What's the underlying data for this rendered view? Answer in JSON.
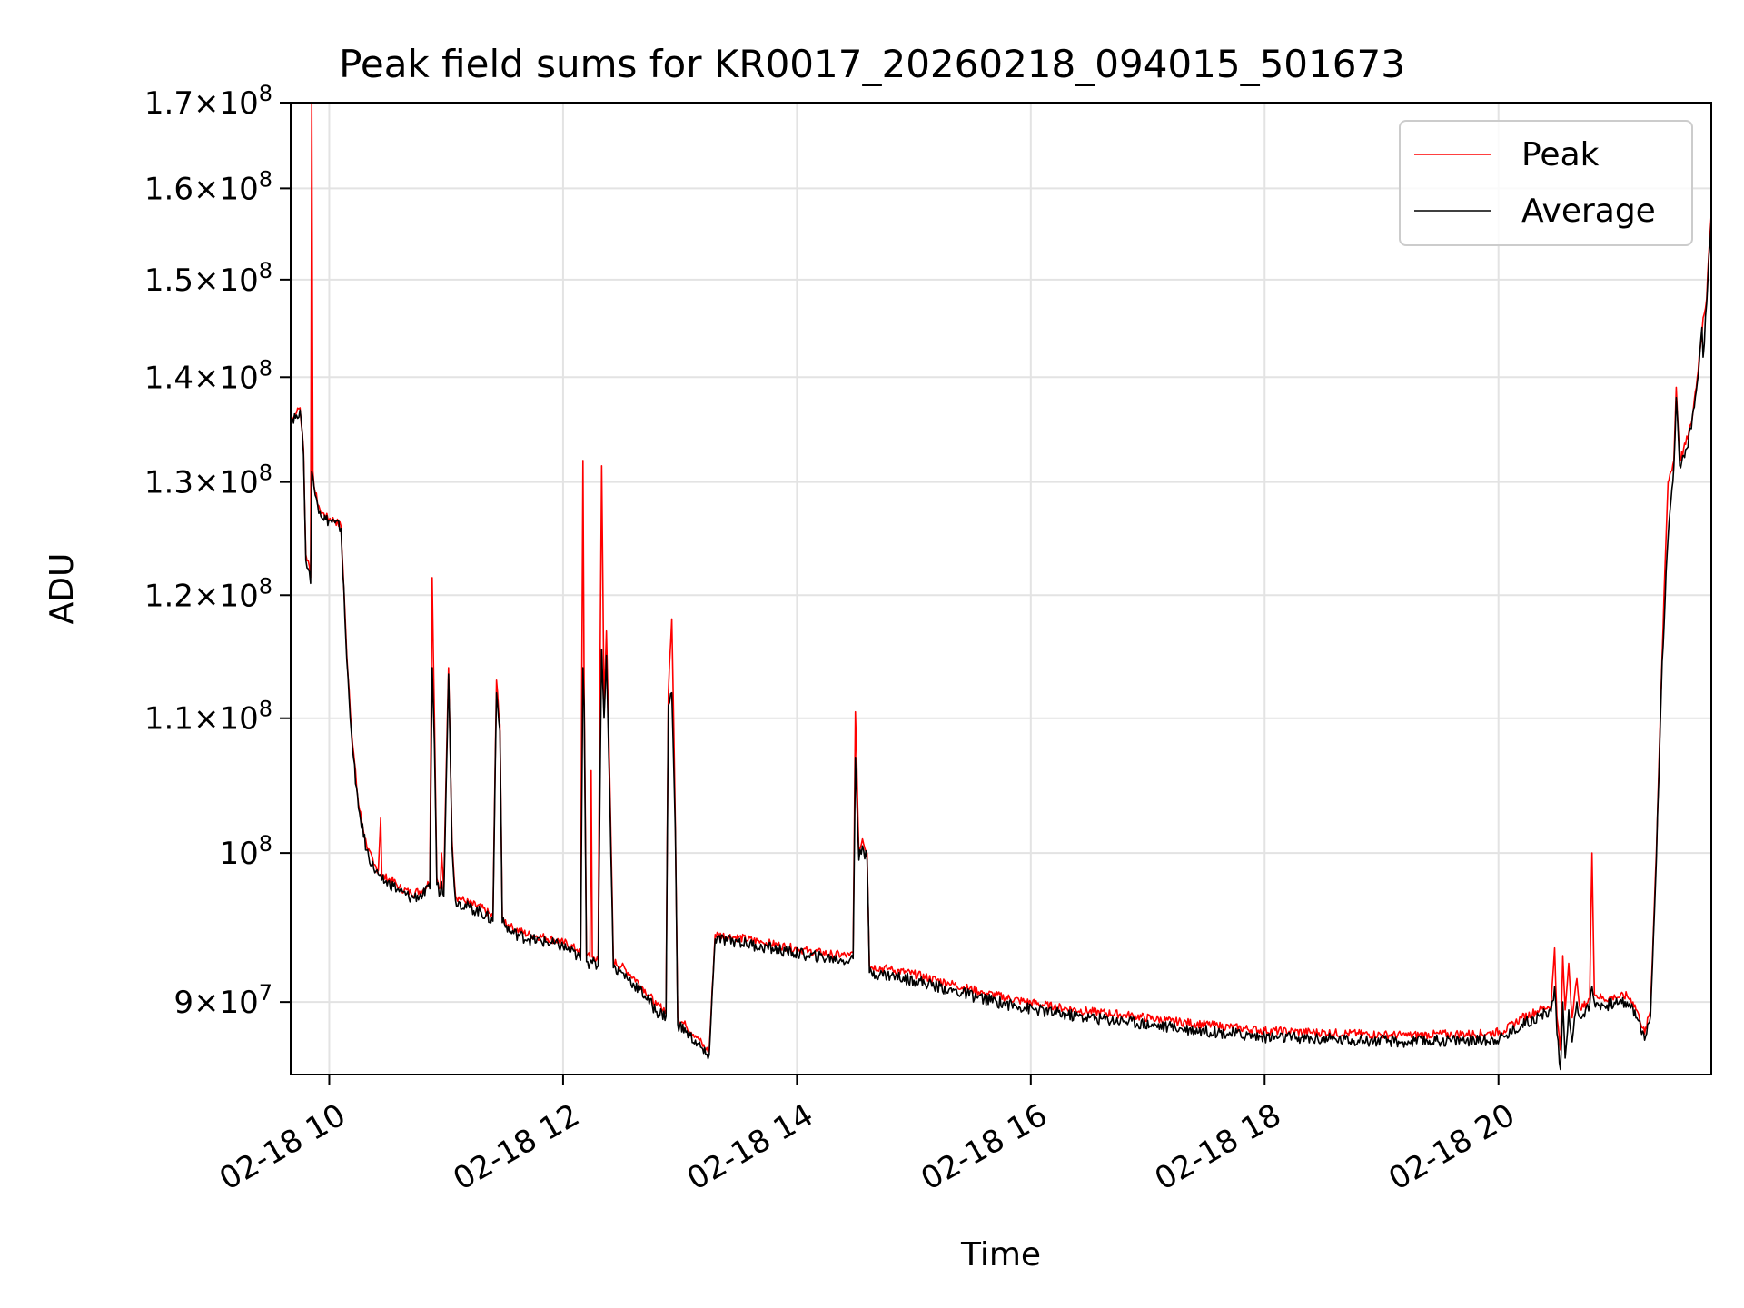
{
  "chart_data": {
    "type": "line",
    "title": "Peak field sums for KR0017_20260218_094015_501673",
    "xlabel": "Time",
    "ylabel": "ADU",
    "y_scale": "log",
    "ylim": [
      85500000,
      170000000
    ],
    "xlim_hours": [
      9.67,
      21.82
    ],
    "grid": true,
    "legend_position": "upper-right",
    "x_ticks": [
      {
        "hour": 10,
        "label": "02-18 10"
      },
      {
        "hour": 12,
        "label": "02-18 12"
      },
      {
        "hour": 14,
        "label": "02-18 14"
      },
      {
        "hour": 16,
        "label": "02-18 16"
      },
      {
        "hour": 18,
        "label": "02-18 18"
      },
      {
        "hour": 20,
        "label": "02-18 20"
      }
    ],
    "y_ticks": [
      {
        "value": 90000000,
        "mantissa": "9",
        "exp": "7"
      },
      {
        "value": 100000000,
        "mantissa": "",
        "exp": "8"
      },
      {
        "value": 110000000,
        "mantissa": "1.1",
        "exp": "8"
      },
      {
        "value": 120000000,
        "mantissa": "1.2",
        "exp": "8"
      },
      {
        "value": 130000000,
        "mantissa": "1.3",
        "exp": "8"
      },
      {
        "value": 140000000,
        "mantissa": "1.4",
        "exp": "8"
      },
      {
        "value": 150000000,
        "mantissa": "1.5",
        "exp": "8"
      },
      {
        "value": 160000000,
        "mantissa": "1.6",
        "exp": "8"
      },
      {
        "value": 170000000,
        "mantissa": "1.7",
        "exp": "8"
      }
    ],
    "series": [
      {
        "name": "Peak",
        "color": "#ff0000",
        "points": [
          [
            9.67,
            136.0
          ],
          [
            9.72,
            136.5
          ],
          [
            9.75,
            137.0
          ],
          [
            9.78,
            133.0
          ],
          [
            9.8,
            123.5
          ],
          [
            9.83,
            122.5
          ],
          [
            9.84,
            121.5
          ],
          [
            9.85,
            170.0
          ],
          [
            9.86,
            131.0
          ],
          [
            9.88,
            129.0
          ],
          [
            9.92,
            127.5
          ],
          [
            9.97,
            126.8
          ],
          [
            10.05,
            126.5
          ],
          [
            10.1,
            126.0
          ],
          [
            10.15,
            115.0
          ],
          [
            10.2,
            108.0
          ],
          [
            10.25,
            103.5
          ],
          [
            10.32,
            100.5
          ],
          [
            10.38,
            99.2
          ],
          [
            10.42,
            98.8
          ],
          [
            10.44,
            102.5
          ],
          [
            10.45,
            98.4
          ],
          [
            10.55,
            98.0
          ],
          [
            10.6,
            97.6
          ],
          [
            10.7,
            97.2
          ],
          [
            10.8,
            97.4
          ],
          [
            10.86,
            98.0
          ],
          [
            10.88,
            121.5
          ],
          [
            10.9,
            110.0
          ],
          [
            10.92,
            98.2
          ],
          [
            10.95,
            97.6
          ],
          [
            10.96,
            100.0
          ],
          [
            10.98,
            97.4
          ],
          [
            11.02,
            114.0
          ],
          [
            11.05,
            101.0
          ],
          [
            11.08,
            97.0
          ],
          [
            11.2,
            96.5
          ],
          [
            11.3,
            96.2
          ],
          [
            11.4,
            95.6
          ],
          [
            11.43,
            113.0
          ],
          [
            11.46,
            109.5
          ],
          [
            11.48,
            95.5
          ],
          [
            11.55,
            94.9
          ],
          [
            11.7,
            94.4
          ],
          [
            11.85,
            94.2
          ],
          [
            12.0,
            93.9
          ],
          [
            12.12,
            93.4
          ],
          [
            12.15,
            93.1
          ],
          [
            12.17,
            132.0
          ],
          [
            12.18,
            112.0
          ],
          [
            12.2,
            93.0
          ],
          [
            12.23,
            92.9
          ],
          [
            12.24,
            106.0
          ],
          [
            12.25,
            92.9
          ],
          [
            12.3,
            92.7
          ],
          [
            12.33,
            131.5
          ],
          [
            12.35,
            111.0
          ],
          [
            12.37,
            117.0
          ],
          [
            12.4,
            105.0
          ],
          [
            12.43,
            92.6
          ],
          [
            12.5,
            92.3
          ],
          [
            12.6,
            91.6
          ],
          [
            12.7,
            90.8
          ],
          [
            12.8,
            89.8
          ],
          [
            12.88,
            89.5
          ],
          [
            12.9,
            112.0
          ],
          [
            12.93,
            118.0
          ],
          [
            12.96,
            102.0
          ],
          [
            12.98,
            89.0
          ],
          [
            13.05,
            88.5
          ],
          [
            13.15,
            87.8
          ],
          [
            13.22,
            87.0
          ],
          [
            13.25,
            87.0
          ],
          [
            13.3,
            94.4
          ],
          [
            13.5,
            94.2
          ],
          [
            13.7,
            93.9
          ],
          [
            13.9,
            93.6
          ],
          [
            14.1,
            93.3
          ],
          [
            14.3,
            93.1
          ],
          [
            14.45,
            93.0
          ],
          [
            14.48,
            93.2
          ],
          [
            14.5,
            110.5
          ],
          [
            14.53,
            100.0
          ],
          [
            14.56,
            101.0
          ],
          [
            14.6,
            100.0
          ],
          [
            14.62,
            92.3
          ],
          [
            14.8,
            92.1
          ],
          [
            15.0,
            91.8
          ],
          [
            15.3,
            91.2
          ],
          [
            15.6,
            90.6
          ],
          [
            15.9,
            90.1
          ],
          [
            16.2,
            89.7
          ],
          [
            16.5,
            89.4
          ],
          [
            16.8,
            89.2
          ],
          [
            17.2,
            88.8
          ],
          [
            17.6,
            88.5
          ],
          [
            18.0,
            88.2
          ],
          [
            18.4,
            88.1
          ],
          [
            18.8,
            88.0
          ],
          [
            19.2,
            87.9
          ],
          [
            19.6,
            88.0
          ],
          [
            19.9,
            88.0
          ],
          [
            20.05,
            88.2
          ],
          [
            20.2,
            89.0
          ],
          [
            20.35,
            89.5
          ],
          [
            20.45,
            89.8
          ],
          [
            20.48,
            93.5
          ],
          [
            20.5,
            89.0
          ],
          [
            20.53,
            87.0
          ],
          [
            20.55,
            93.0
          ],
          [
            20.57,
            89.5
          ],
          [
            20.6,
            92.5
          ],
          [
            20.63,
            89.0
          ],
          [
            20.67,
            91.5
          ],
          [
            20.7,
            89.5
          ],
          [
            20.78,
            90.2
          ],
          [
            20.8,
            100.0
          ],
          [
            20.82,
            90.5
          ],
          [
            20.9,
            90.2
          ],
          [
            21.0,
            90.3
          ],
          [
            21.1,
            90.4
          ],
          [
            21.15,
            90.0
          ],
          [
            21.2,
            89.2
          ],
          [
            21.25,
            88.0
          ],
          [
            21.3,
            89.5
          ],
          [
            21.35,
            100.0
          ],
          [
            21.4,
            115.0
          ],
          [
            21.45,
            130.0
          ],
          [
            21.5,
            132.0
          ],
          [
            21.52,
            139.0
          ],
          [
            21.55,
            132.0
          ],
          [
            21.6,
            133.5
          ],
          [
            21.65,
            135.5
          ],
          [
            21.7,
            140.0
          ],
          [
            21.75,
            146.0
          ],
          [
            21.78,
            148.0
          ],
          [
            21.8,
            153.0
          ],
          [
            21.82,
            157.0
          ]
        ]
      },
      {
        "name": "Average",
        "color": "#000000",
        "points": [
          [
            9.67,
            135.8
          ],
          [
            9.72,
            136.3
          ],
          [
            9.75,
            136.8
          ],
          [
            9.78,
            132.5
          ],
          [
            9.8,
            123.0
          ],
          [
            9.83,
            122.0
          ],
          [
            9.84,
            121.0
          ],
          [
            9.85,
            131.0
          ],
          [
            9.86,
            130.5
          ],
          [
            9.88,
            128.8
          ],
          [
            9.92,
            127.3
          ],
          [
            9.97,
            126.6
          ],
          [
            10.05,
            126.3
          ],
          [
            10.1,
            125.8
          ],
          [
            10.15,
            114.6
          ],
          [
            10.2,
            107.6
          ],
          [
            10.25,
            103.2
          ],
          [
            10.32,
            100.2
          ],
          [
            10.38,
            98.9
          ],
          [
            10.42,
            98.5
          ],
          [
            10.44,
            98.5
          ],
          [
            10.45,
            98.1
          ],
          [
            10.55,
            97.7
          ],
          [
            10.6,
            97.3
          ],
          [
            10.7,
            96.9
          ],
          [
            10.8,
            97.1
          ],
          [
            10.86,
            97.5
          ],
          [
            10.88,
            114.0
          ],
          [
            10.9,
            108.0
          ],
          [
            10.92,
            97.8
          ],
          [
            10.95,
            97.2
          ],
          [
            10.96,
            98.0
          ],
          [
            10.98,
            97.0
          ],
          [
            11.02,
            113.5
          ],
          [
            11.05,
            100.5
          ],
          [
            11.08,
            96.7
          ],
          [
            11.2,
            96.2
          ],
          [
            11.3,
            95.9
          ],
          [
            11.4,
            95.3
          ],
          [
            11.43,
            112.0
          ],
          [
            11.46,
            109.0
          ],
          [
            11.48,
            95.2
          ],
          [
            11.55,
            94.6
          ],
          [
            11.7,
            94.1
          ],
          [
            11.85,
            93.9
          ],
          [
            12.0,
            93.6
          ],
          [
            12.12,
            93.0
          ],
          [
            12.15,
            92.7
          ],
          [
            12.17,
            114.0
          ],
          [
            12.18,
            111.0
          ],
          [
            12.2,
            92.6
          ],
          [
            12.23,
            92.5
          ],
          [
            12.24,
            92.7
          ],
          [
            12.25,
            92.5
          ],
          [
            12.3,
            92.3
          ],
          [
            12.33,
            115.5
          ],
          [
            12.35,
            110.0
          ],
          [
            12.37,
            115.0
          ],
          [
            12.4,
            104.0
          ],
          [
            12.43,
            92.2
          ],
          [
            12.5,
            91.9
          ],
          [
            12.6,
            91.2
          ],
          [
            12.7,
            90.4
          ],
          [
            12.8,
            89.4
          ],
          [
            12.88,
            89.1
          ],
          [
            12.9,
            111.0
          ],
          [
            12.93,
            112.0
          ],
          [
            12.96,
            101.5
          ],
          [
            12.98,
            88.6
          ],
          [
            13.05,
            88.1
          ],
          [
            13.15,
            87.4
          ],
          [
            13.22,
            86.7
          ],
          [
            13.25,
            86.7
          ],
          [
            13.3,
            94.1
          ],
          [
            13.5,
            93.9
          ],
          [
            13.7,
            93.6
          ],
          [
            13.9,
            93.3
          ],
          [
            14.1,
            93.0
          ],
          [
            14.3,
            92.8
          ],
          [
            14.45,
            92.7
          ],
          [
            14.48,
            92.8
          ],
          [
            14.5,
            107.0
          ],
          [
            14.53,
            99.5
          ],
          [
            14.56,
            100.5
          ],
          [
            14.6,
            99.5
          ],
          [
            14.62,
            91.9
          ],
          [
            14.8,
            91.7
          ],
          [
            15.0,
            91.4
          ],
          [
            15.3,
            90.8
          ],
          [
            15.6,
            90.2
          ],
          [
            15.9,
            89.7
          ],
          [
            16.2,
            89.3
          ],
          [
            16.5,
            89.0
          ],
          [
            16.8,
            88.8
          ],
          [
            17.2,
            88.4
          ],
          [
            17.6,
            88.1
          ],
          [
            18.0,
            87.8
          ],
          [
            18.4,
            87.7
          ],
          [
            18.8,
            87.6
          ],
          [
            19.2,
            87.5
          ],
          [
            19.6,
            87.6
          ],
          [
            19.9,
            87.6
          ],
          [
            20.05,
            87.8
          ],
          [
            20.2,
            88.6
          ],
          [
            20.35,
            89.1
          ],
          [
            20.45,
            89.4
          ],
          [
            20.48,
            91.0
          ],
          [
            20.5,
            88.0
          ],
          [
            20.53,
            85.8
          ],
          [
            20.55,
            90.0
          ],
          [
            20.57,
            86.5
          ],
          [
            20.6,
            89.5
          ],
          [
            20.63,
            87.5
          ],
          [
            20.67,
            90.0
          ],
          [
            20.7,
            89.0
          ],
          [
            20.78,
            89.8
          ],
          [
            20.8,
            91.0
          ],
          [
            20.82,
            90.0
          ],
          [
            20.9,
            89.8
          ],
          [
            21.0,
            89.9
          ],
          [
            21.1,
            90.0
          ],
          [
            21.15,
            89.6
          ],
          [
            21.2,
            88.8
          ],
          [
            21.25,
            87.6
          ],
          [
            21.3,
            89.1
          ],
          [
            21.35,
            99.5
          ],
          [
            21.4,
            114.5
          ],
          [
            21.45,
            125.0
          ],
          [
            21.5,
            131.5
          ],
          [
            21.52,
            138.0
          ],
          [
            21.55,
            131.5
          ],
          [
            21.6,
            133.0
          ],
          [
            21.65,
            135.0
          ],
          [
            21.7,
            139.5
          ],
          [
            21.72,
            142.0
          ],
          [
            21.74,
            145.0
          ],
          [
            21.75,
            142.0
          ],
          [
            21.78,
            147.5
          ],
          [
            21.8,
            152.5
          ],
          [
            21.82,
            156.5
          ]
        ]
      }
    ]
  }
}
